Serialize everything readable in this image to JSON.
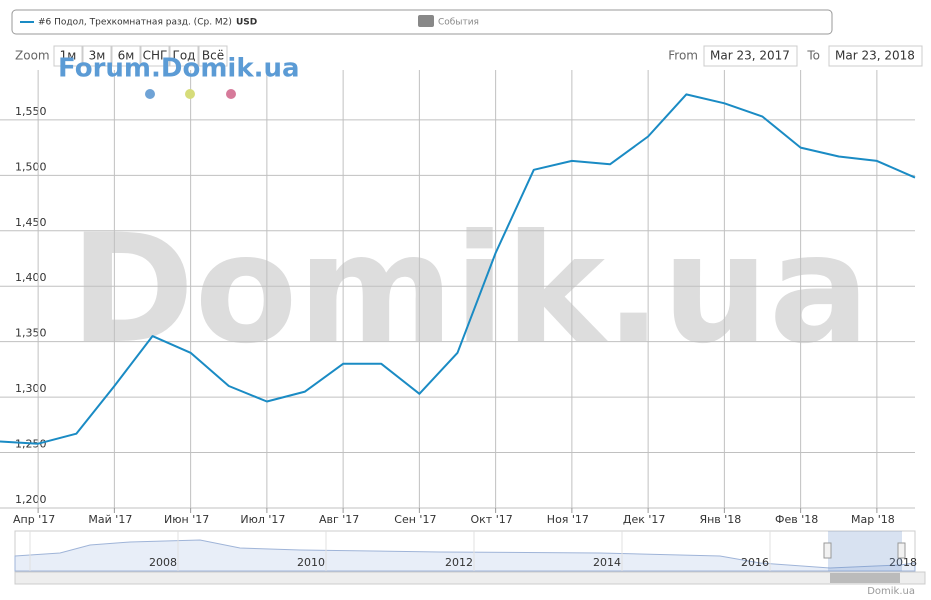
{
  "chart_data": {
    "type": "line",
    "legend": {
      "series_label": "#6 Подол, Трехкомнатная разд. (Ср. М2)",
      "unit": "USD",
      "events": "События"
    },
    "zoom": {
      "label": "Zoom",
      "buttons": [
        "1м",
        "3м",
        "6м",
        "СНГ",
        "Год",
        "Всё"
      ]
    },
    "range": {
      "from_label": "From",
      "from": "Mar 23, 2017",
      "to_label": "To",
      "to": "Mar 23, 2018"
    },
    "watermark": "Domik.ua",
    "forum": "Forum.Domik.ua",
    "credit": "Domik.ua",
    "categories": [
      null,
      "Апр '17",
      null,
      "Май '17",
      null,
      "Июн '17",
      null,
      "Июл '17",
      null,
      "Авг '17",
      null,
      "Сен '17",
      null,
      "Окт '17",
      null,
      "Ноя '17",
      null,
      "Дек '17",
      null,
      "Янв '18",
      null,
      "Фев '18",
      null,
      "Мар '18",
      null
    ],
    "series": [
      {
        "name": "#6 Подол, Трехкомнатная разд. (Ср. М2)",
        "color": "#1a8bc4",
        "values": [
          1260,
          1258,
          1267,
          1310,
          1355,
          1340,
          1310,
          1296,
          1305,
          1330,
          1330,
          1303,
          1340,
          1430,
          1505,
          1513,
          1510,
          1535,
          1573,
          1565,
          1553,
          1525,
          1517,
          1513,
          1498
        ]
      }
    ],
    "ylim": [
      1200,
      1595
    ],
    "yticks": [
      {
        "value": 1200,
        "label": "1,200"
      },
      {
        "value": 1250,
        "label": "1,250"
      },
      {
        "value": 1300,
        "label": "1,300"
      },
      {
        "value": 1350,
        "label": "1,350"
      },
      {
        "value": 1400,
        "label": "1,400"
      },
      {
        "value": 1450,
        "label": "1,450"
      },
      {
        "value": 1500,
        "label": "1,500"
      },
      {
        "value": 1550,
        "label": "1,550"
      }
    ],
    "grid": true,
    "navigator": {
      "labels": [
        "2008",
        "2010",
        "2012",
        "2014",
        "2016",
        "2018"
      ]
    }
  }
}
